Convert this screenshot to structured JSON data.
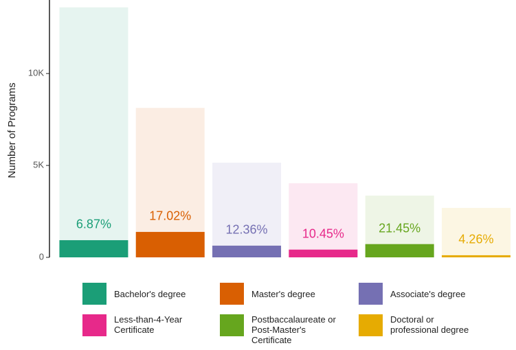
{
  "chart_data": {
    "type": "bar",
    "y_label": "Number of Programs",
    "categories": [
      "Bachelor's degree",
      "Master's degree",
      "Associate's degree",
      "Less-than-4-Year Certificate",
      "Postbaccalaureate or Post-Master's Certificate",
      "Doctoral or professional degree"
    ],
    "colors": [
      "#1b9e77",
      "#d95f02",
      "#7570b3",
      "#e7298a",
      "#66a61e",
      "#e6ab02"
    ],
    "values": [
      13600,
      8130,
      5150,
      4030,
      3360,
      2690
    ],
    "highlight_values": [
      934,
      1384,
      637,
      421,
      721,
      115
    ],
    "highlight_labels": [
      "6.87%",
      "17.02%",
      "12.36%",
      "10.45%",
      "21.45%",
      "4.26%"
    ],
    "ylim": [
      0,
      14000
    ],
    "yticks": [
      0,
      {
        "value": 5000,
        "label": "5K"
      },
      {
        "value": 10000,
        "label": "10K"
      }
    ]
  }
}
